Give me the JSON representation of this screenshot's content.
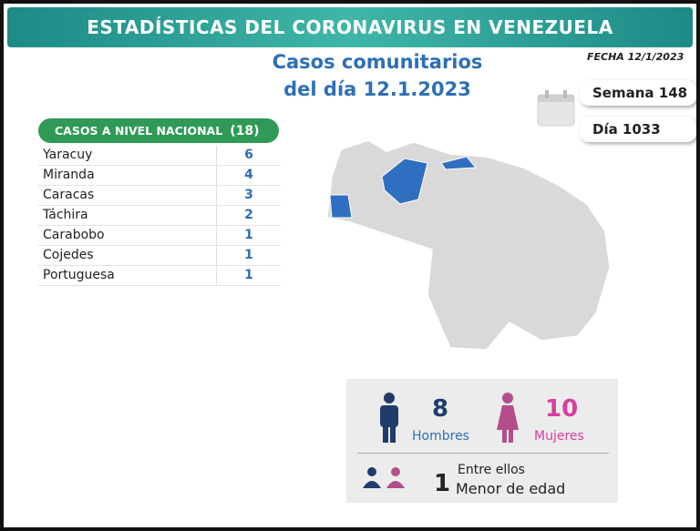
{
  "header": {
    "title": "ESTADÍSTICAS DEL CORONAVIRUS EN VENEZUELA",
    "subtitle": [
      "Casos comunitarios",
      "del día 12.1.2023"
    ],
    "date": "FECHA 12/1/2023"
  },
  "counters": {
    "week": "Semana 148",
    "day": "Día 1033"
  },
  "table": {
    "title": "CASOS A NIVEL NACIONAL",
    "total": "(18)",
    "rows": [
      [
        "Yaracuy",
        6
      ],
      [
        "Miranda",
        4
      ],
      [
        "Caracas",
        3
      ],
      [
        "Táchira",
        2
      ],
      [
        "Carabobo",
        1
      ],
      [
        "Cojedes",
        1
      ],
      [
        "Portuguesa",
        1
      ]
    ]
  },
  "summary": {
    "men": {
      "count": 8,
      "label": "Hombres"
    },
    "women": {
      "count": 10,
      "label": "Mujeres"
    },
    "minors": {
      "intro": "Entre ellos",
      "count": 1,
      "label": "Menor de edad"
    }
  }
}
